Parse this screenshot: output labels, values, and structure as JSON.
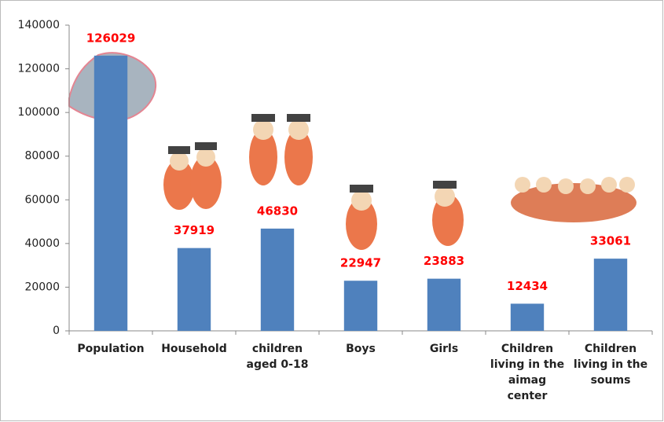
{
  "chart_data": {
    "type": "bar",
    "categories": [
      "Population",
      "Household",
      "children aged 0-18",
      "Boys",
      "Girls",
      "Children living in the aimag center",
      "Children living in the soums"
    ],
    "values": [
      126029,
      37919,
      46830,
      22947,
      23883,
      12434,
      33061
    ],
    "color": "#4f81bd",
    "label_color": "#ff0000",
    "ylim": [
      0,
      140000
    ],
    "yticks": [
      0,
      20000,
      40000,
      60000,
      80000,
      100000,
      120000,
      140000
    ],
    "grid": false
  }
}
